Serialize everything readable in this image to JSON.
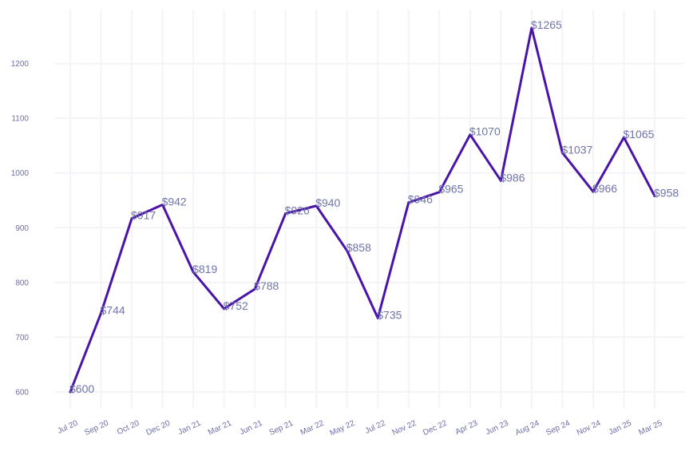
{
  "chart_data": {
    "type": "line",
    "title": "",
    "xlabel": "",
    "ylabel": "",
    "categories": [
      "Jul 20",
      "Sep 20",
      "Oct 20",
      "Dec 20",
      "Jan 21",
      "Mar 21",
      "Jun 21",
      "Sep 21",
      "Mar 22",
      "May 22",
      "Jul 22",
      "Nov 22",
      "Dec 22",
      "Apr 23",
      "Jun 23",
      "Aug 24",
      "Sep 24",
      "Nov 24",
      "Jan 25",
      "Mar 25"
    ],
    "values": [
      600,
      744,
      917,
      942,
      819,
      752,
      788,
      926,
      940,
      858,
      735,
      946,
      965,
      1070,
      986,
      1265,
      1037,
      966,
      1065,
      958
    ],
    "data_labels": [
      "$600",
      "$744",
      "$917",
      "$942",
      "$819",
      "$752",
      "$788",
      "$926",
      "$940",
      "$858",
      "$735",
      "$946",
      "$965",
      "$1070",
      "$986",
      "$1265",
      "$1037",
      "$966",
      "$1065",
      "$958"
    ],
    "yticks": [
      600,
      700,
      800,
      900,
      1000,
      1100,
      1200
    ],
    "ylim": [
      560,
      1285
    ],
    "grid": true,
    "colors": {
      "line": "#4a14a8",
      "tick_text": "#6b6fa8",
      "label_text": "#6f74aa",
      "grid": "#f4f4f8"
    }
  }
}
